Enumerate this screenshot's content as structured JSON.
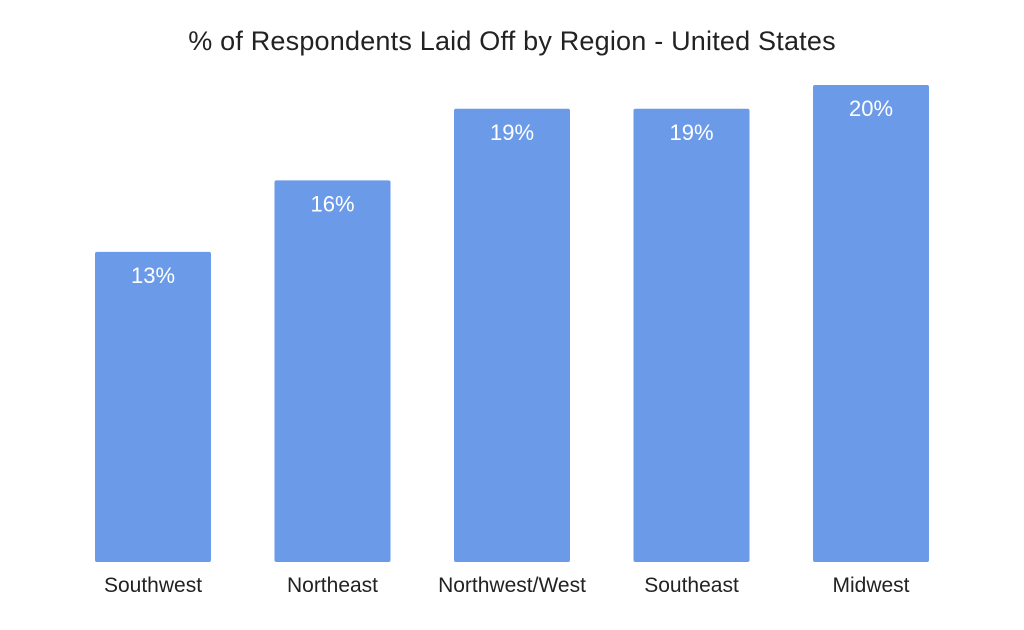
{
  "chart_data": {
    "type": "bar",
    "title": "% of Respondents Laid Off by Region - United States",
    "xlabel": "",
    "ylabel": "",
    "categories": [
      "Southwest",
      "Northeast",
      "Northwest/West",
      "Southeast",
      "Midwest"
    ],
    "values": [
      13,
      16,
      19,
      19,
      20
    ],
    "value_labels": [
      "13%",
      "16%",
      "19%",
      "19%",
      "20%"
    ],
    "unit": "%",
    "ylim": [
      0,
      20
    ],
    "grid": false,
    "legend": "none",
    "bar_color": "#6b9be8",
    "label_color": "#ffffff"
  }
}
